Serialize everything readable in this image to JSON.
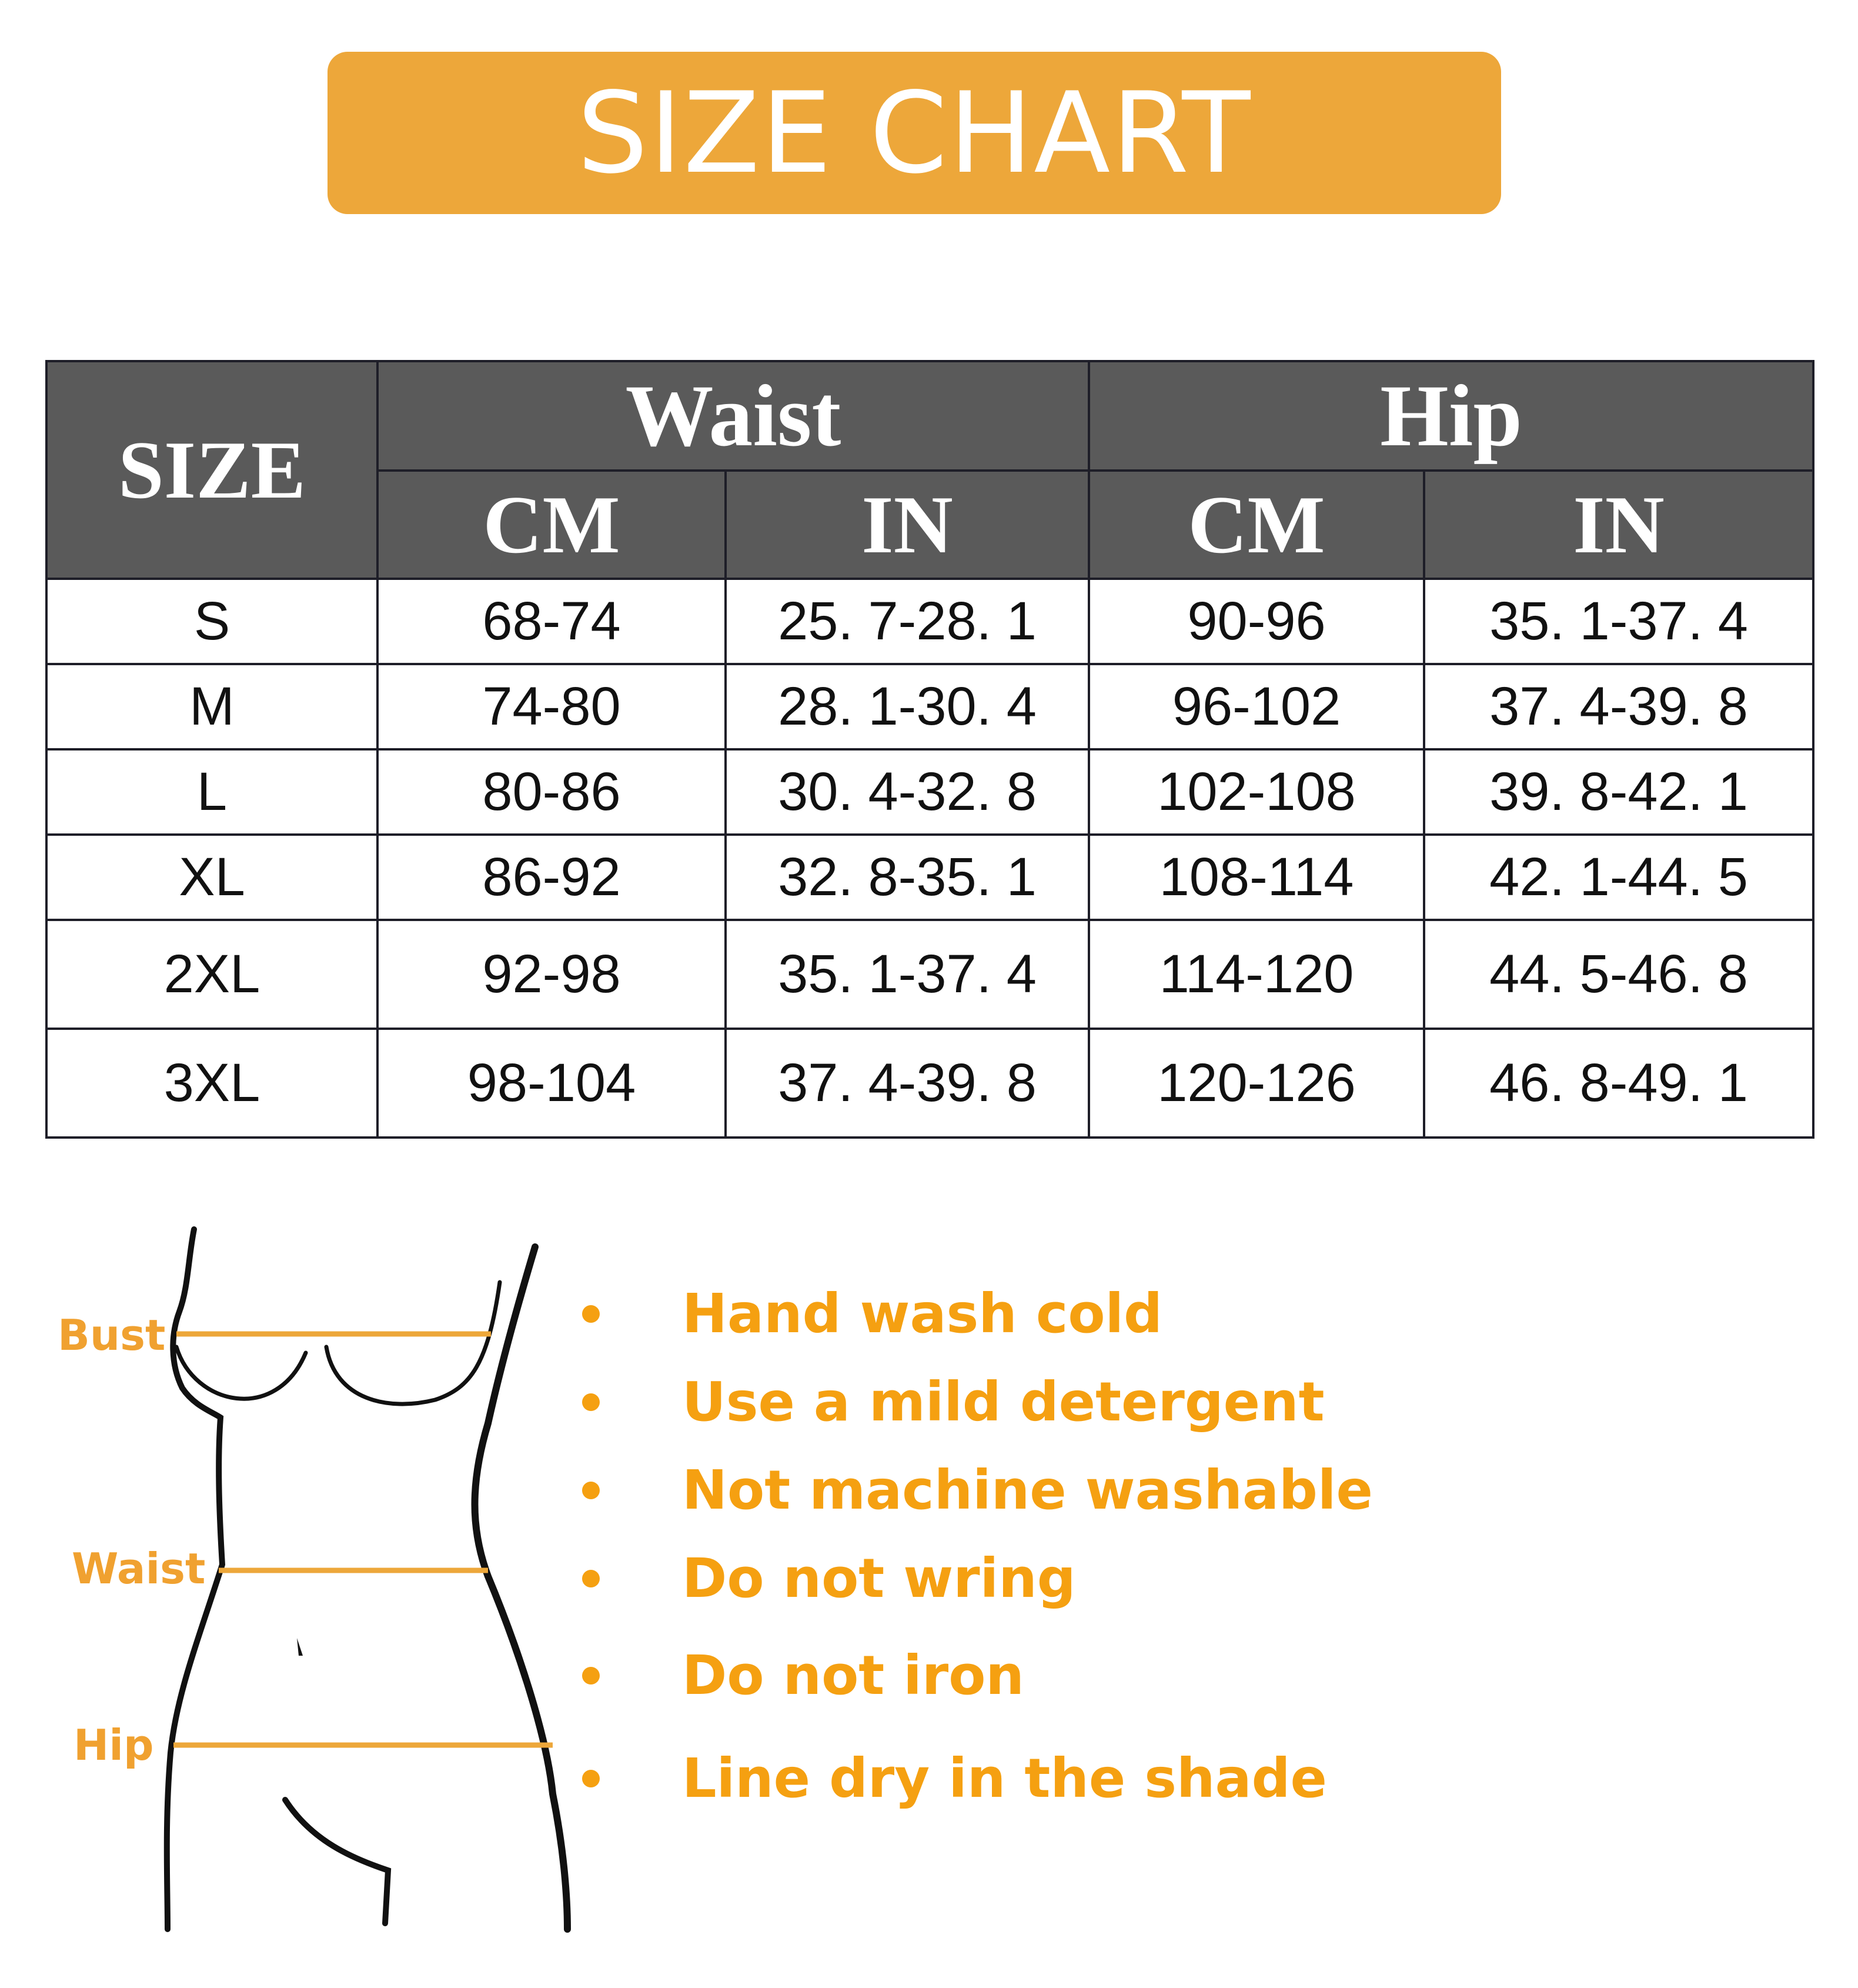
{
  "title": "SIZE CHART",
  "table": {
    "size_header": "SIZE",
    "groups": [
      "Waist",
      "Hip"
    ],
    "units": [
      "CM",
      "IN",
      "CM",
      "IN"
    ],
    "rows": [
      [
        "S",
        "68-74",
        "25. 7-28. 1",
        "90-96",
        "35. 1-37. 4"
      ],
      [
        "M",
        "74-80",
        "28. 1-30. 4",
        "96-102",
        "37. 4-39. 8"
      ],
      [
        "L",
        "80-86",
        "30. 4-32. 8",
        "102-108",
        "39. 8-42. 1"
      ],
      [
        "XL",
        "86-92",
        "32. 8-35. 1",
        "108-114",
        "42. 1-44. 5"
      ],
      [
        "2XL",
        "92-98",
        "35. 1-37. 4",
        "114-120",
        "44. 5-46. 8"
      ],
      [
        "3XL",
        "98-104",
        "37. 4-39. 8",
        "120-126",
        "46. 8-49. 1"
      ]
    ]
  },
  "figure": {
    "labels": [
      "Bust",
      "Waist",
      "Hip"
    ]
  },
  "care": [
    "Hand wash cold",
    "Use a mild detergent",
    "Not machine washable",
    "Do not wring",
    "Do not iron",
    "Line dry in the shade"
  ],
  "colors": {
    "accent": "#EDA73A",
    "text_orange": "#F5A011",
    "header_gray": "#5a5a5a"
  }
}
